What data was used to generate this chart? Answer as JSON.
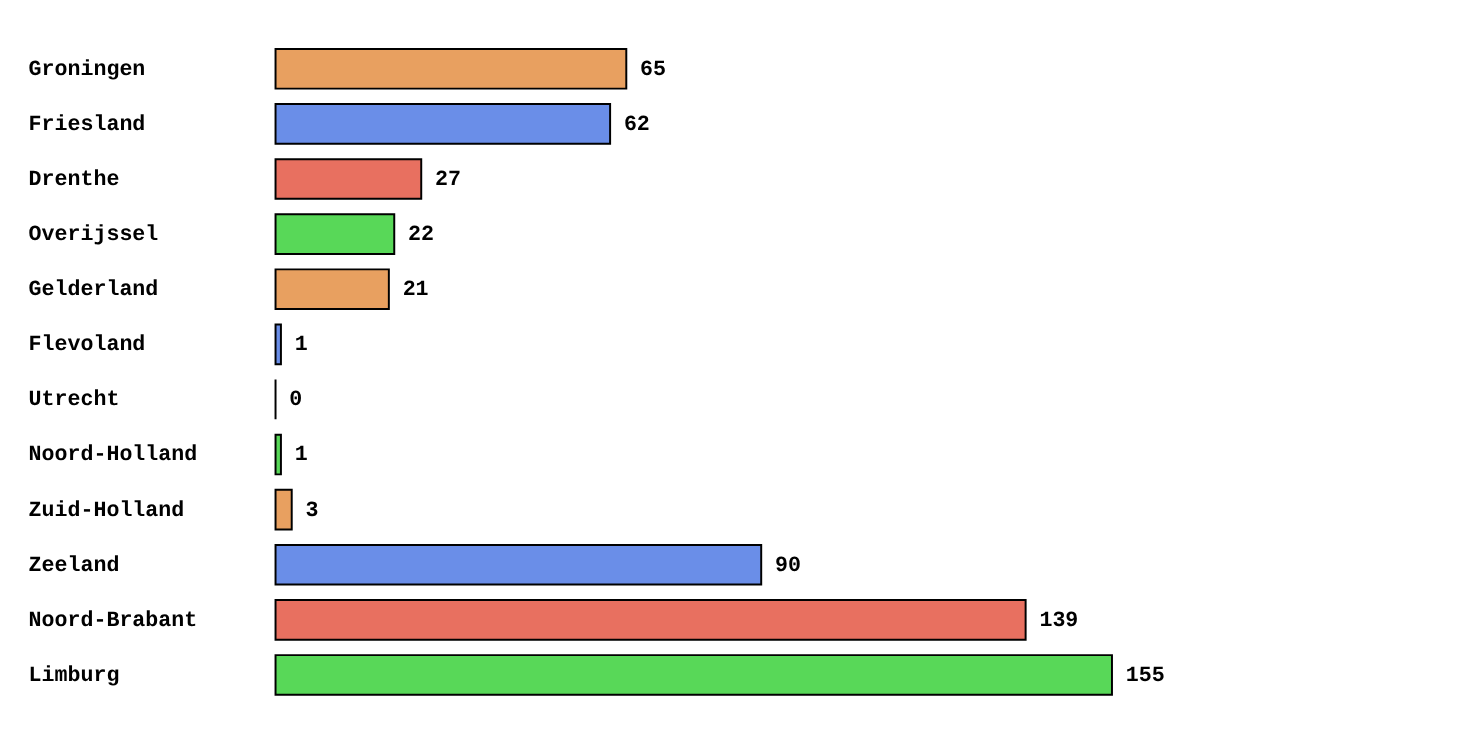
{
  "chart_data": {
    "type": "bar",
    "orientation": "horizontal",
    "categories": [
      "Groningen",
      "Friesland",
      "Drenthe",
      "Overijssel",
      "Gelderland",
      "Flevoland",
      "Utrecht",
      "Noord-Holland",
      "Zuid-Holland",
      "Zeeland",
      "Noord-Brabant",
      "Limburg"
    ],
    "values": [
      65,
      62,
      27,
      22,
      21,
      1,
      0,
      1,
      3,
      90,
      139,
      155
    ],
    "colors": [
      "#e8a060",
      "#6a8ee8",
      "#e87060",
      "#58d858",
      "#e8a060",
      "#6a8ee8",
      "#000000",
      "#58d858",
      "#e8a060",
      "#6a8ee8",
      "#e87060",
      "#58d858"
    ],
    "data_labels": true,
    "grid": false
  }
}
